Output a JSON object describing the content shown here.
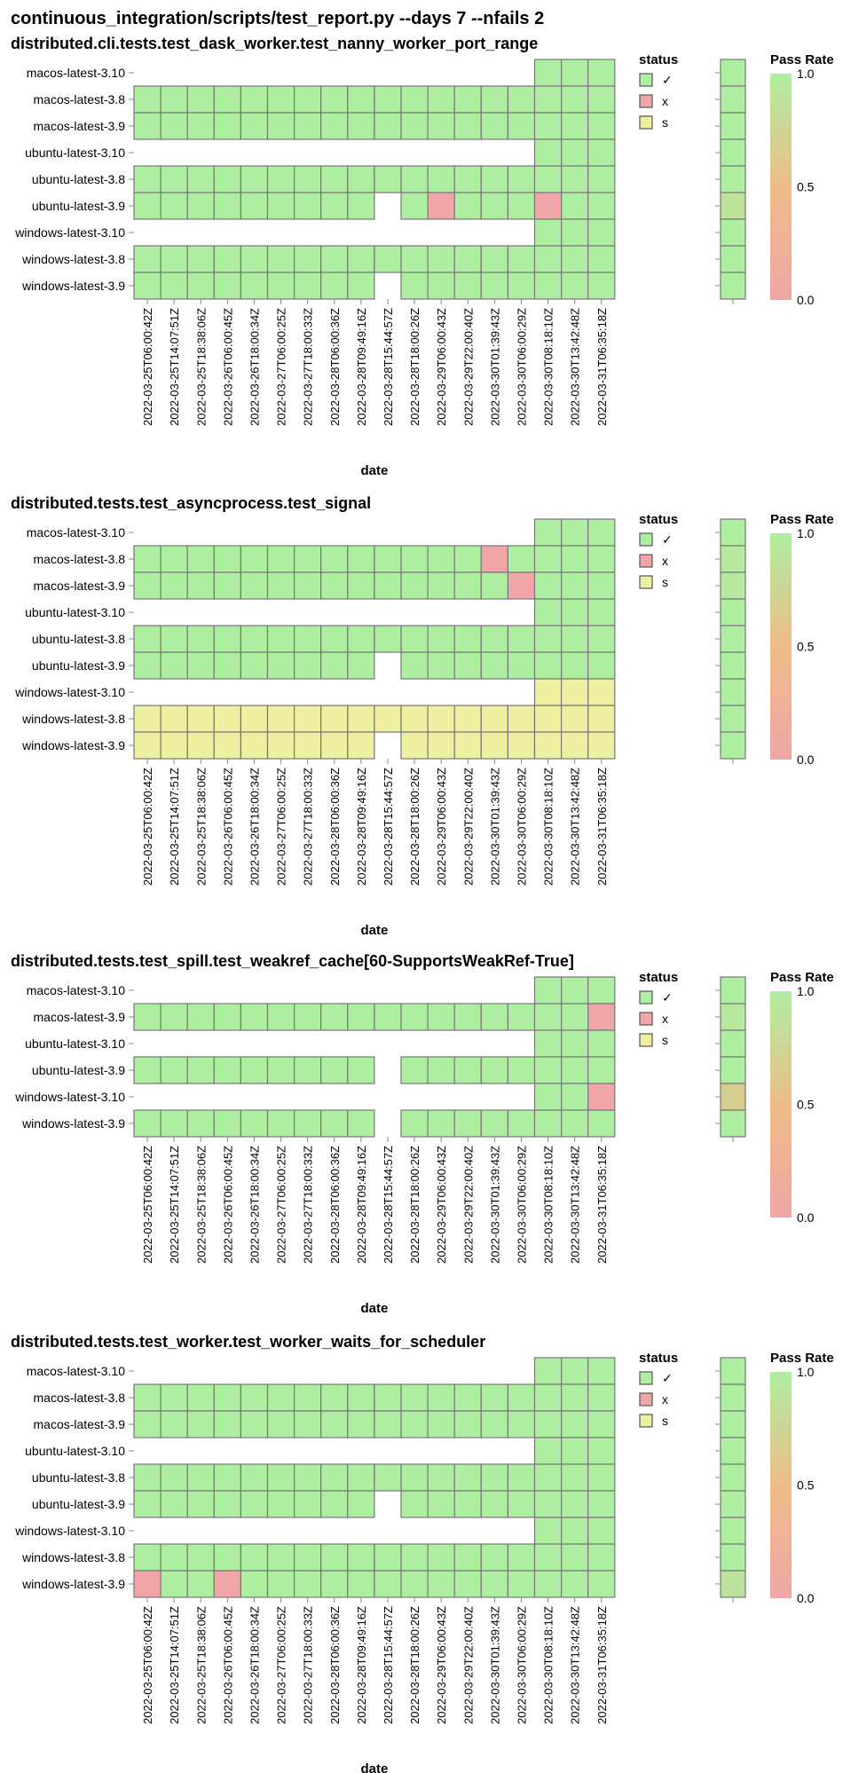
{
  "page": {
    "title": "continuous_integration/scripts/test_report.py --days 7 --nfails 2"
  },
  "legend": {
    "title": "status",
    "items": [
      {
        "label": "✓",
        "color": "#aeeea0"
      },
      {
        "label": "x",
        "color": "#f0a6a6"
      },
      {
        "label": "s",
        "color": "#eef0a0"
      }
    ]
  },
  "colorbar": {
    "title": "Pass Rate",
    "ticks": [
      "1.0",
      "0.5",
      "0.0"
    ],
    "high_color": "#aeeea0",
    "mid_color": "#eebc88",
    "low_color": "#f0a6a6"
  },
  "colors": {
    "pass": "#aeeea0",
    "fail": "#f0a6a6",
    "skip": "#eef0a0",
    "border": "#777777"
  },
  "xlabel": "date",
  "dates": [
    "2022-03-25T06:00:42Z",
    "2022-03-25T14:07:51Z",
    "2022-03-25T18:38:06Z",
    "2022-03-26T06:00:45Z",
    "2022-03-26T18:00:34Z",
    "2022-03-27T06:00:25Z",
    "2022-03-27T18:00:33Z",
    "2022-03-28T06:00:36Z",
    "2022-03-28T09:49:16Z",
    "2022-03-28T15:44:57Z",
    "2022-03-28T18:00:26Z",
    "2022-03-29T06:00:43Z",
    "2022-03-29T22:00:40Z",
    "2022-03-30T01:39:43Z",
    "2022-03-30T06:00:29Z",
    "2022-03-30T08:18:10Z",
    "2022-03-30T13:42:48Z",
    "2022-03-31T06:35:18Z"
  ],
  "chart_data": [
    {
      "type": "heatmap",
      "title": "distributed.cli.tests.test_dask_worker.test_nanny_worker_port_range",
      "xlabel": "date",
      "rows": [
        "macos-latest-3.10",
        "macos-latest-3.8",
        "macos-latest-3.9",
        "ubuntu-latest-3.10",
        "ubuntu-latest-3.8",
        "ubuntu-latest-3.9",
        "windows-latest-3.10",
        "windows-latest-3.8",
        "windows-latest-3.9"
      ],
      "status": [
        "...............ppp",
        "pppppppppppppppppp",
        "pppppppppppppppppp",
        "...............ppp",
        "pppppppppppppppppp",
        "ppppppppp.pxpppxpp",
        "...............ppp",
        "pppppppppppppppppp",
        "ppppppppp.pppppppp"
      ],
      "pass_rate": [
        1.0,
        1.0,
        1.0,
        1.0,
        1.0,
        0.88,
        1.0,
        1.0,
        1.0
      ]
    },
    {
      "type": "heatmap",
      "title": "distributed.tests.test_asyncprocess.test_signal",
      "xlabel": "date",
      "rows": [
        "macos-latest-3.10",
        "macos-latest-3.8",
        "macos-latest-3.9",
        "ubuntu-latest-3.10",
        "ubuntu-latest-3.8",
        "ubuntu-latest-3.9",
        "windows-latest-3.10",
        "windows-latest-3.8",
        "windows-latest-3.9"
      ],
      "status": [
        "...............ppp",
        "pppppppppppppxpppp",
        "ppppppppppppppxppp",
        "...............ppp",
        "pppppppppppppppppp",
        "ppppppppp.pppppppp",
        "...............sss",
        "ssssssssssssssssss",
        "sssssssss.ssssssss"
      ],
      "pass_rate": [
        1.0,
        0.94,
        0.94,
        1.0,
        1.0,
        1.0,
        1.0,
        1.0,
        1.0
      ]
    },
    {
      "type": "heatmap",
      "title": "distributed.tests.test_spill.test_weakref_cache[60-SupportsWeakRef-True]",
      "xlabel": "date",
      "rows": [
        "macos-latest-3.10",
        "macos-latest-3.9",
        "ubuntu-latest-3.10",
        "ubuntu-latest-3.9",
        "windows-latest-3.10",
        "windows-latest-3.9"
      ],
      "status": [
        "...............ppp",
        "pppppppppppppppppx",
        "...............ppp",
        "ppppppppp.pppppppp",
        "...............ppx",
        "ppppppppp.pppppppp"
      ],
      "pass_rate": [
        1.0,
        0.94,
        1.0,
        1.0,
        0.67,
        1.0
      ]
    },
    {
      "type": "heatmap",
      "title": "distributed.tests.test_worker.test_worker_waits_for_scheduler",
      "xlabel": "date",
      "rows": [
        "macos-latest-3.10",
        "macos-latest-3.8",
        "macos-latest-3.9",
        "ubuntu-latest-3.10",
        "ubuntu-latest-3.8",
        "ubuntu-latest-3.9",
        "windows-latest-3.10",
        "windows-latest-3.8",
        "windows-latest-3.9"
      ],
      "status": [
        "...............ppp",
        "pppppppppppppppppp",
        "pppppppppppppppppp",
        "...............ppp",
        "pppppppppppppppppp",
        "ppppppppp.pppppppp",
        "...............ppp",
        "pppppppppppppppppp",
        "xppxpppppppppppppp"
      ],
      "pass_rate": [
        1.0,
        1.0,
        1.0,
        1.0,
        1.0,
        1.0,
        1.0,
        1.0,
        0.89
      ]
    }
  ]
}
